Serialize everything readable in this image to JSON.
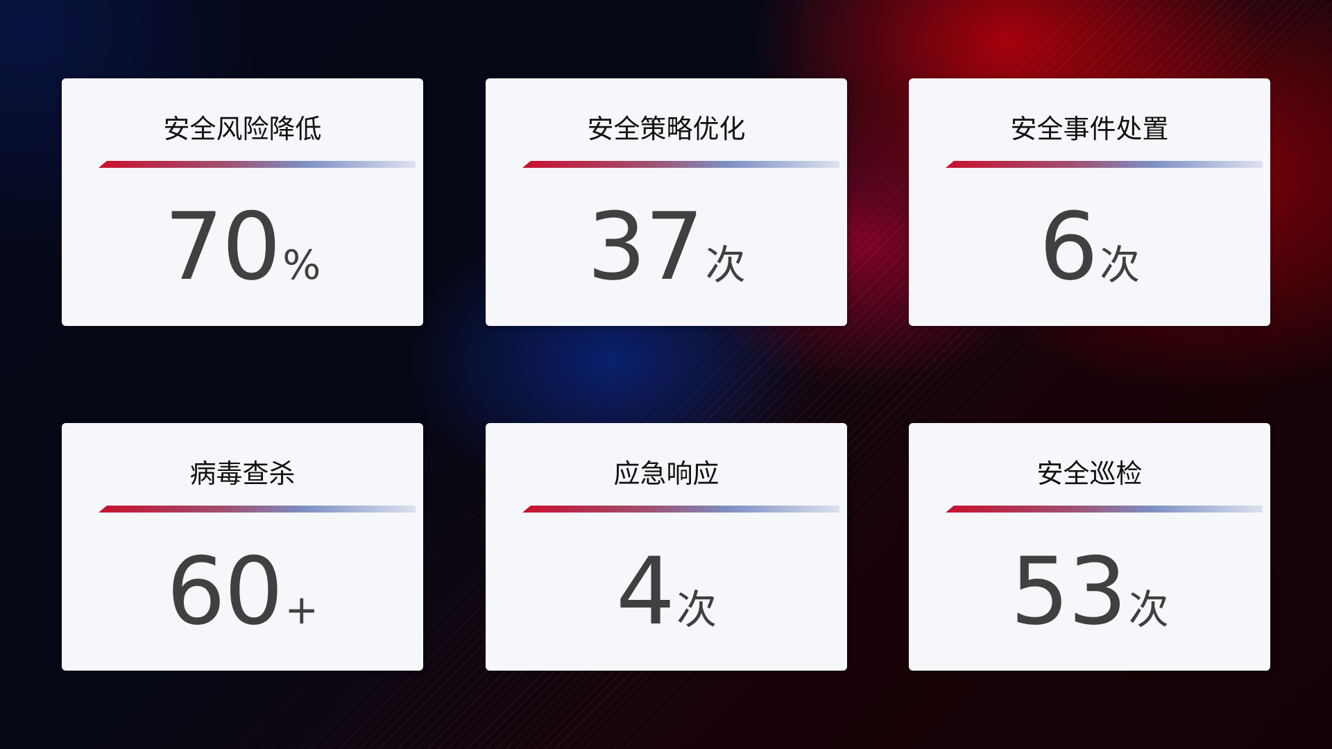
{
  "cards": [
    {
      "title": "安全风险降低",
      "value": "70",
      "unit": "%"
    },
    {
      "title": "安全策略优化",
      "value": "37",
      "unit": "次"
    },
    {
      "title": "安全事件处置",
      "value": "6",
      "unit": "次"
    },
    {
      "title": "病毒查杀",
      "value": "60",
      "unit": "+"
    },
    {
      "title": "应急响应",
      "value": "4",
      "unit": "次"
    },
    {
      "title": "安全巡检",
      "value": "53",
      "unit": "次"
    }
  ],
  "colors": {
    "accent_red": "#c8102e",
    "accent_blue": "#7d8fc4",
    "card_bg": "#f6f7fb",
    "value_text": "#404040"
  }
}
